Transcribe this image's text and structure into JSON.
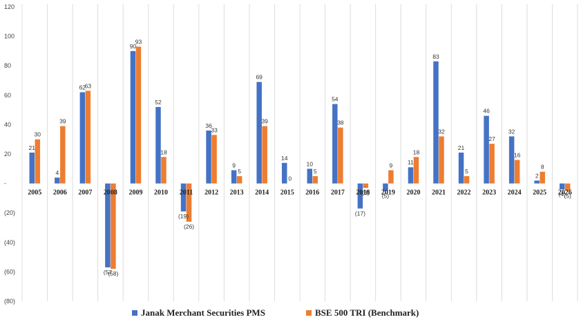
{
  "chart_data": {
    "type": "bar",
    "title": "",
    "xlabel": "",
    "ylabel": "",
    "ylim": [
      -80,
      120
    ],
    "yticks": [
      120,
      100,
      80,
      60,
      40,
      20,
      0,
      -20,
      -40,
      -60,
      -80
    ],
    "ytick_labels": [
      "120",
      "100",
      "80",
      "60",
      "40",
      "20",
      "-",
      "(20)",
      "(40)",
      "(60)",
      "(80)"
    ],
    "categories": [
      "2005",
      "2006",
      "2007",
      "2008",
      "2009",
      "2010",
      "2011",
      "2012",
      "2013",
      "2014",
      "2015",
      "2016",
      "2017",
      "2018",
      "2019",
      "2020",
      "2021",
      "2022",
      "2023",
      "2024",
      "2025",
      "2026"
    ],
    "series": [
      {
        "name": "Janak Merchant Securities PMS",
        "color": "#4472C4",
        "values": [
          21,
          4,
          62,
          -57,
          90,
          52,
          -19,
          36,
          9,
          69,
          14,
          10,
          54,
          -17,
          -5,
          11,
          83,
          21,
          46,
          32,
          2,
          -4
        ],
        "labels": [
          "21",
          "4",
          "62",
          "(57",
          "90",
          "52",
          "(19)",
          "36",
          "9",
          "69",
          "14",
          "10",
          "54",
          "(17)",
          "(5)",
          "11",
          "83",
          "21",
          "46",
          "32",
          "2",
          "(4)"
        ]
      },
      {
        "name": "BSE 500 TRI (Benchmark)",
        "color": "#ED7D31",
        "values": [
          30,
          39,
          63,
          -58,
          93,
          18,
          -26,
          33,
          5,
          39,
          0,
          5,
          38,
          -3,
          9,
          18,
          32,
          5,
          27,
          16,
          8,
          -5
        ],
        "labels": [
          "30",
          "39",
          "63",
          "(58)",
          "93",
          "18",
          "(26)",
          "33",
          "5",
          "39",
          "0",
          "5",
          "38",
          "(3)",
          "9",
          "18",
          "32",
          "5",
          "27",
          "16",
          "8",
          "(5)"
        ]
      }
    ],
    "grid": "vertical",
    "legend": "bottom"
  }
}
